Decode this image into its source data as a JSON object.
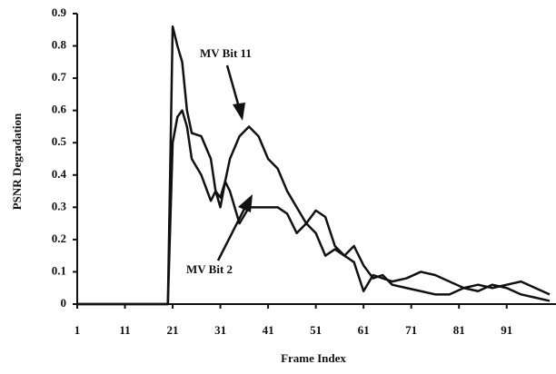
{
  "chart_data": {
    "type": "line",
    "xlabel": "Frame Index",
    "ylabel": "PSNR Degradation",
    "x": [
      1,
      20,
      21,
      22,
      23,
      24,
      25,
      27,
      29,
      30,
      31,
      32,
      33,
      35,
      37,
      39,
      41,
      43,
      45,
      47,
      49,
      51,
      53,
      55,
      57,
      59,
      61,
      63,
      65,
      67,
      70,
      73,
      76,
      79,
      82,
      85,
      88,
      91,
      94,
      97,
      100
    ],
    "series": [
      {
        "name": "MV Bit 11",
        "color": "#111111",
        "values": [
          0,
          0,
          0.86,
          0.8,
          0.75,
          0.6,
          0.53,
          0.52,
          0.45,
          0.35,
          0.3,
          0.38,
          0.45,
          0.52,
          0.55,
          0.52,
          0.45,
          0.42,
          0.35,
          0.3,
          0.25,
          0.22,
          0.15,
          0.17,
          0.15,
          0.13,
          0.04,
          0.09,
          0.08,
          0.07,
          0.08,
          0.1,
          0.09,
          0.07,
          0.05,
          0.04,
          0.06,
          0.05,
          0.03,
          0.02,
          0.01
        ]
      },
      {
        "name": "MV Bit 2",
        "color": "#111111",
        "values": [
          0,
          0,
          0.5,
          0.58,
          0.6,
          0.55,
          0.45,
          0.4,
          0.32,
          0.35,
          0.33,
          0.38,
          0.35,
          0.25,
          0.3,
          0.3,
          0.3,
          0.3,
          0.28,
          0.22,
          0.25,
          0.29,
          0.27,
          0.18,
          0.15,
          0.18,
          0.12,
          0.08,
          0.09,
          0.06,
          0.05,
          0.04,
          0.03,
          0.03,
          0.05,
          0.06,
          0.05,
          0.06,
          0.07,
          0.05,
          0.03
        ]
      }
    ],
    "xlim": [
      1,
      100
    ],
    "xticks": [
      1,
      11,
      21,
      31,
      41,
      51,
      61,
      71,
      81,
      91
    ],
    "ylim": [
      0,
      0.9
    ],
    "yticks": [
      0,
      0.1,
      0.2,
      0.3,
      0.4,
      0.5,
      0.6,
      0.7,
      0.8,
      0.9
    ],
    "grid": false
  }
}
